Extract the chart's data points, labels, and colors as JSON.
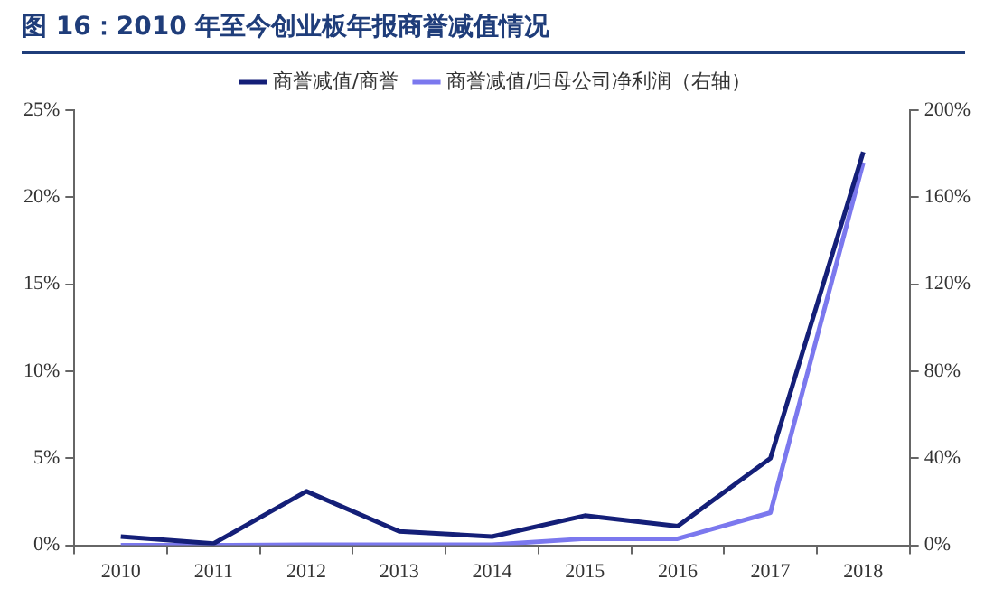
{
  "chart_data": {
    "type": "line",
    "title": "图 16：2010 年至今创业板年报商誉减值情况",
    "categories": [
      "2010",
      "2011",
      "2012",
      "2013",
      "2014",
      "2015",
      "2016",
      "2017",
      "2018"
    ],
    "series": [
      {
        "name": "商誉减值/商誉",
        "color": "#141f78",
        "values": [
          0.5,
          0.1,
          3.1,
          0.8,
          0.5,
          1.7,
          1.1,
          5.0,
          22.6
        ]
      },
      {
        "name": "商誉减值/归母公司净利润（右轴）",
        "color": "#7b78ee",
        "axis": "y2",
        "values": [
          0,
          0,
          0.3,
          0.3,
          0.3,
          3,
          3,
          15,
          176
        ]
      }
    ],
    "ylim": [
      0,
      25
    ],
    "yticks": [
      {
        "value": 0,
        "label": "0%"
      },
      {
        "value": 5,
        "label": "5%"
      },
      {
        "value": 10,
        "label": "10%"
      },
      {
        "value": 15,
        "label": "15%"
      },
      {
        "value": 20,
        "label": "20%"
      },
      {
        "value": 25,
        "label": "25%"
      }
    ],
    "y2lim": [
      0,
      200
    ],
    "y2ticks": [
      {
        "value": 0,
        "label": "0%"
      },
      {
        "value": 40,
        "label": "40%"
      },
      {
        "value": 80,
        "label": "80%"
      },
      {
        "value": 120,
        "label": "120%"
      },
      {
        "value": 160,
        "label": "160%"
      },
      {
        "value": 200,
        "label": "200%"
      }
    ],
    "grid": false,
    "legend": "top",
    "marker": "none",
    "line_style": "solid"
  }
}
